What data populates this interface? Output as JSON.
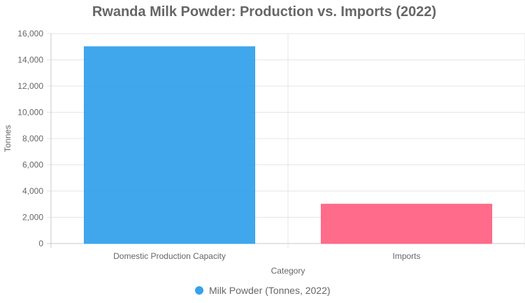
{
  "chart_data": {
    "type": "bar",
    "title": "Rwanda Milk Powder: Production vs. Imports (2022)",
    "xlabel": "Category",
    "ylabel": "Tonnes",
    "categories": [
      "Domestic Production Capacity",
      "Imports"
    ],
    "series": [
      {
        "name": "Milk Powder (Tonnes, 2022)",
        "values": [
          15000,
          3000
        ],
        "colors": [
          "#36a2eb",
          "#ff6384"
        ]
      }
    ],
    "ylim": [
      0,
      16000
    ],
    "yticks": [
      "0",
      "2,000",
      "4,000",
      "6,000",
      "8,000",
      "10,000",
      "12,000",
      "14,000",
      "16,000"
    ],
    "grid": true,
    "legend_position": "bottom",
    "legend_color": "#36a2eb"
  }
}
